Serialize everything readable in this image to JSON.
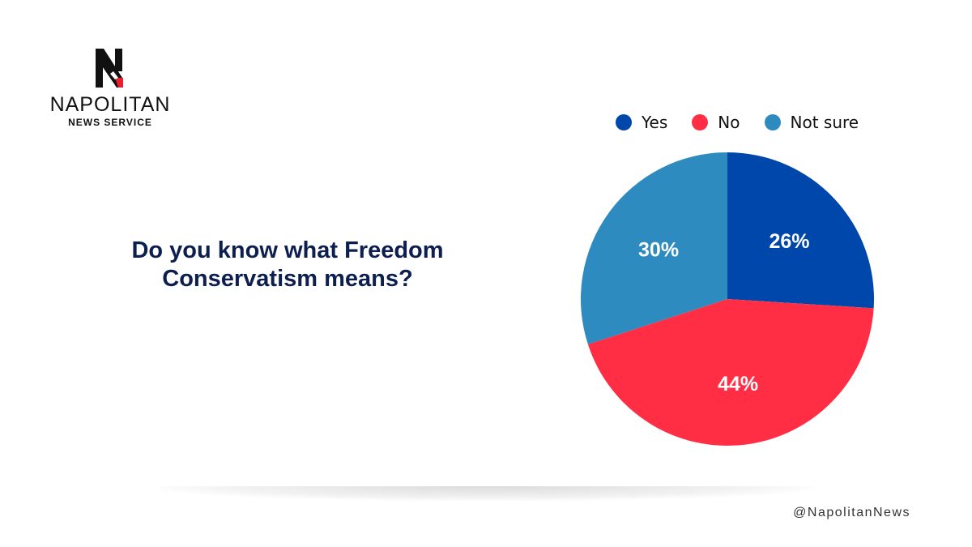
{
  "brand": {
    "name": "NAPOLITAN",
    "subtitle": "NEWS SERVICE",
    "logo_letter": "N"
  },
  "question": "Do you know what Freedom Conservatism means?",
  "social_handle": "@NapolitanNews",
  "chart_data": {
    "type": "pie",
    "title": "Do you know what Freedom Conservatism means?",
    "legend_position": "top",
    "slices": [
      {
        "label": "Yes",
        "value": 26,
        "display": "26%",
        "color": "#0047ab"
      },
      {
        "label": "No",
        "value": 44,
        "display": "44%",
        "color": "#ff2e44"
      },
      {
        "label": "Not sure",
        "value": 30,
        "display": "30%",
        "color": "#2e8bbf"
      }
    ]
  }
}
